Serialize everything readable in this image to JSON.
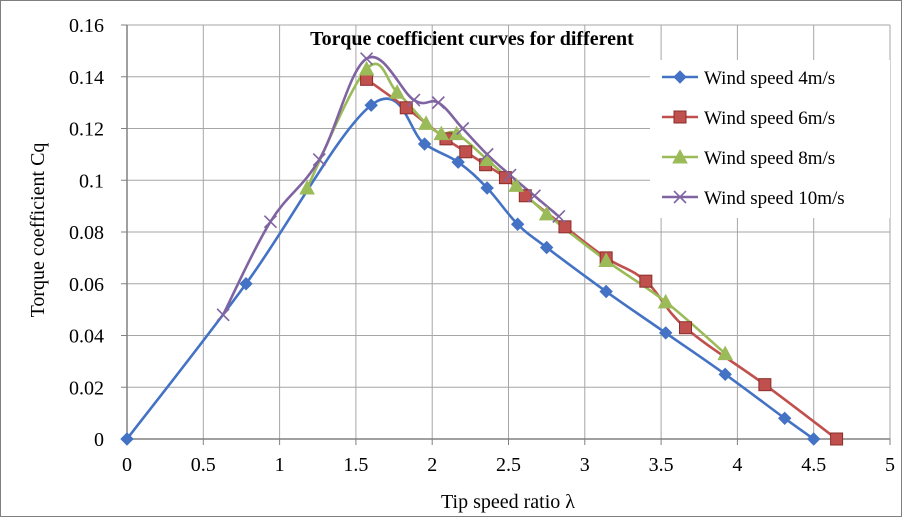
{
  "chart_data": {
    "type": "line",
    "title": "Torque coefficient curves for different",
    "xlabel": "Tip speed ratio λ",
    "ylabel": "Torque coefficient Cq",
    "xlim": [
      0,
      5
    ],
    "ylim": [
      0,
      0.16
    ],
    "xticks": [
      "0",
      "0.5",
      "1",
      "1.5",
      "2",
      "2.5",
      "3",
      "3.5",
      "4",
      "4.5",
      "5"
    ],
    "yticks": [
      "0",
      "0.02",
      "0.04",
      "0.06",
      "0.08",
      "0.1",
      "0.12",
      "0.14",
      "0.16"
    ],
    "grid": true,
    "legend_position": "top-right",
    "series": [
      {
        "name": "Wind speed 4m/s",
        "color": "#4472c4",
        "marker": "diamond",
        "x": [
          0,
          0.78,
          1.6,
          1.95,
          2.17,
          2.36,
          2.56,
          2.75,
          3.14,
          3.53,
          3.92,
          4.31,
          4.5
        ],
        "y": [
          0,
          0.06,
          0.129,
          0.114,
          0.107,
          0.097,
          0.083,
          0.074,
          0.057,
          0.041,
          0.025,
          0.008,
          0
        ]
      },
      {
        "name": "Wind speed 6m/s",
        "color": "#c0504d",
        "marker": "square",
        "x": [
          1.57,
          1.83,
          2.09,
          2.22,
          2.35,
          2.48,
          2.61,
          2.87,
          3.14,
          3.4,
          3.66,
          4.18,
          4.65
        ],
        "y": [
          0.139,
          0.128,
          0.116,
          0.111,
          0.106,
          0.101,
          0.094,
          0.082,
          0.07,
          0.061,
          0.043,
          0.021,
          0
        ]
      },
      {
        "name": "Wind speed 8m/s",
        "color": "#9bbb59",
        "marker": "triangle",
        "x": [
          1.18,
          1.57,
          1.77,
          1.96,
          2.06,
          2.16,
          2.36,
          2.55,
          2.75,
          3.14,
          3.53,
          3.92
        ],
        "y": [
          0.097,
          0.143,
          0.134,
          0.122,
          0.118,
          0.118,
          0.108,
          0.098,
          0.087,
          0.069,
          0.053,
          0.033
        ]
      },
      {
        "name": "Wind speed 10m/s",
        "color": "#8064a2",
        "marker": "x",
        "x": [
          0.63,
          0.94,
          1.26,
          1.57,
          1.88,
          2.04,
          2.2,
          2.36,
          2.51,
          2.67,
          2.83
        ],
        "y": [
          0.048,
          0.084,
          0.108,
          0.147,
          0.131,
          0.13,
          0.12,
          0.11,
          0.102,
          0.094,
          0.086
        ]
      }
    ]
  }
}
